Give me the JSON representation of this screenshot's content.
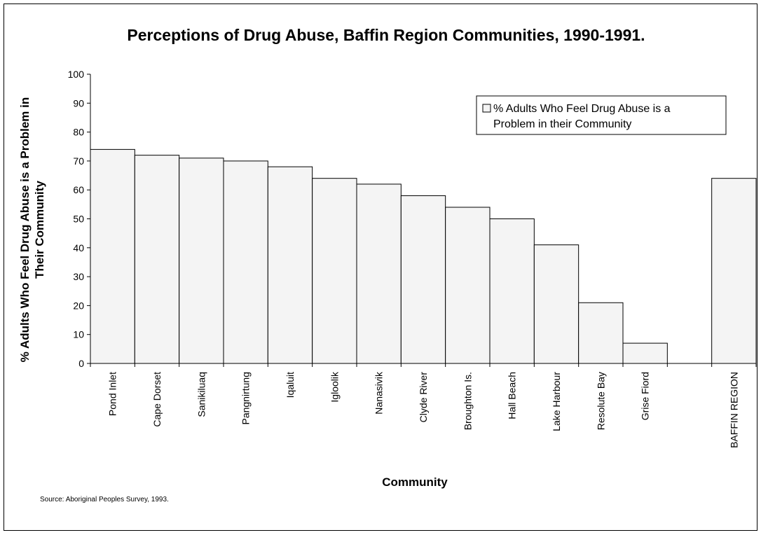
{
  "chart_data": {
    "type": "bar",
    "title": "Perceptions of Drug Abuse, Baffin Region Communities, 1990-1991.",
    "ylabel_lines": [
      "% Adults Who Feel Drug Abuse is a Problem in",
      "Their Community"
    ],
    "xlabel": "Community",
    "ylim": [
      0,
      100
    ],
    "yticks": [
      0,
      10,
      20,
      30,
      40,
      50,
      60,
      70,
      80,
      90,
      100
    ],
    "grid": false,
    "legend_position": "top-right",
    "categories": [
      "Pond Inlet",
      "Cape Dorset",
      "Sanikiluaq",
      "Pangnirtung",
      "Iqaluit",
      "Igloolik",
      "Nanasivik",
      "Clyde River",
      "Broughton Is.",
      "Hall Beach",
      "Lake Harbour",
      "Resolute Bay",
      "Grise Fiord",
      "",
      "BAFFIN REGION"
    ],
    "series": [
      {
        "name": "% Adults Who Feel Drug Abuse is a Problem in their Community",
        "values": [
          74,
          72,
          71,
          70,
          68,
          64,
          62,
          58,
          54,
          50,
          41,
          21,
          7,
          null,
          64
        ]
      }
    ],
    "legend_lines": [
      "% Adults Who Feel Drug Abuse is a",
      "Problem in their Community"
    ],
    "bar_fill": "#f4f4f4",
    "bar_stroke": "#000000",
    "source": "Source: Aboriginal Peoples Survey, 1993."
  }
}
